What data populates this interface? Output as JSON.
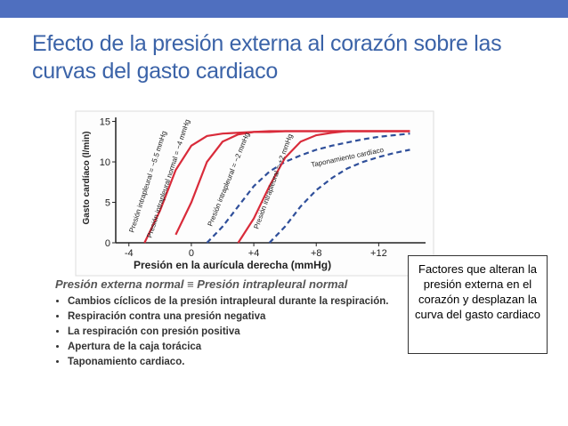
{
  "title": "Efecto de la presión externa al corazón sobre las curvas del gasto cardiaco",
  "chart_data": {
    "type": "line",
    "xlabel": "Presión en la aurícula derecha (mmHg)",
    "ylabel": "Gasto cardíaco (l/min)",
    "x": [
      -3,
      -2,
      -1,
      0,
      1,
      2,
      3,
      4,
      5,
      6,
      7,
      8,
      9,
      10,
      11,
      12,
      13,
      14
    ],
    "series": [
      {
        "name": "Presión intrapleural = −5.5 mmHg",
        "color": "#d92b3a",
        "dash": false,
        "values": [
          0,
          4,
          9,
          12,
          13.2,
          13.5,
          13.6,
          13.7,
          13.7,
          13.8,
          13.8,
          13.8,
          13.8,
          13.8,
          13.8,
          13.8,
          13.8,
          13.8
        ]
      },
      {
        "name": "Presión intrapleural normal = −4 mmHg",
        "color": "#d92b3a",
        "dash": false,
        "values": [
          null,
          null,
          1,
          5,
          10,
          12.5,
          13.4,
          13.7,
          13.8,
          13.8,
          13.8,
          13.8,
          13.8,
          13.8,
          13.8,
          13.8,
          13.8,
          13.8
        ]
      },
      {
        "name": "Presión intrapleural = −2 mmHg",
        "color": "#2f4f9a",
        "dash": true,
        "values": [
          null,
          null,
          null,
          null,
          0,
          2,
          4.5,
          7,
          8.8,
          10,
          10.8,
          11.5,
          12,
          12.4,
          12.8,
          13.1,
          13.3,
          13.5
        ]
      },
      {
        "name": "Presión intrapleural = +2 mmHg",
        "color": "#d92b3a",
        "dash": false,
        "values": [
          null,
          null,
          null,
          null,
          null,
          null,
          0,
          3,
          7,
          10.5,
          12.5,
          13.3,
          13.6,
          13.8,
          13.8,
          13.8,
          13.8,
          13.8
        ]
      },
      {
        "name": "Taponamiento cardíaco",
        "color": "#2f4f9a",
        "dash": true,
        "values": [
          null,
          null,
          null,
          null,
          null,
          null,
          null,
          null,
          0,
          2,
          4.5,
          6.5,
          8,
          9.2,
          10,
          10.6,
          11.1,
          11.5
        ]
      }
    ],
    "xlim": [
      -4.5,
      15
    ],
    "ylim": [
      0,
      15.5
    ],
    "xticks": [
      -4,
      0,
      {
        "value": 4,
        "label": "+4"
      },
      {
        "value": 8,
        "label": "+8"
      },
      {
        "value": 12,
        "label": "+12"
      }
    ],
    "yticks": [
      0,
      5,
      10,
      15
    ]
  },
  "bullets": {
    "heading": "Presión externa normal ≡ Presión intrapleural normal",
    "items": [
      "Cambios cíclicos de la presión intrapleural durante la respiración.",
      "Respiración contra una presión negativa",
      "La respiración con presión positiva",
      "Apertura de la caja torácica",
      "Taponamiento cardiaco."
    ]
  },
  "callout": "Factores que alteran la presión externa en el corazón y desplazan la curva del gasto cardiaco"
}
